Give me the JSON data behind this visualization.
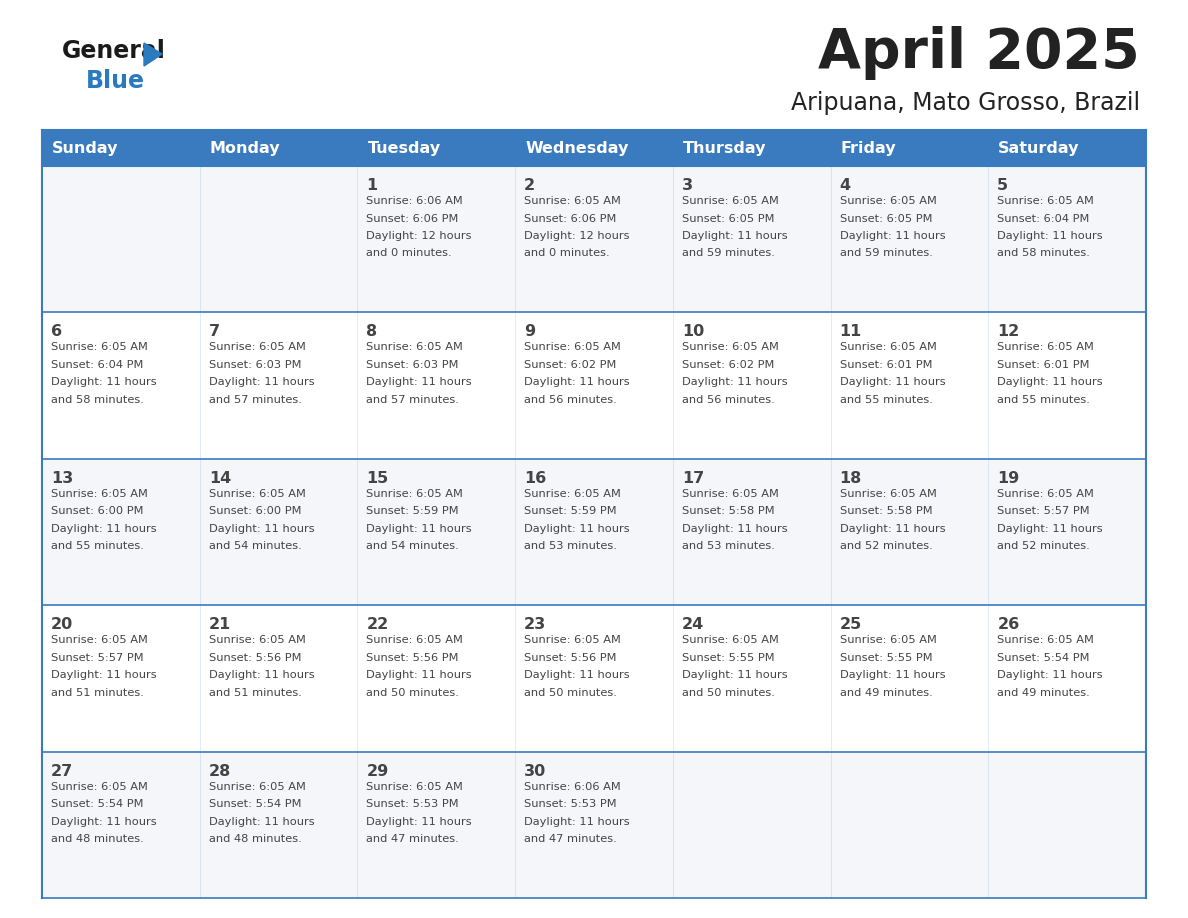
{
  "title": "April 2025",
  "subtitle": "Aripuana, Mato Grosso, Brazil",
  "days_of_week": [
    "Sunday",
    "Monday",
    "Tuesday",
    "Wednesday",
    "Thursday",
    "Friday",
    "Saturday"
  ],
  "header_bg": "#3a7abf",
  "header_text": "#ffffff",
  "border_color": "#3a7abf",
  "text_color": "#444444",
  "title_color": "#222222",
  "logo_general_color": "#1a1a1a",
  "logo_blue_color": "#2a7abf",
  "days": [
    {
      "date": 1,
      "col": 2,
      "row": 0,
      "sunrise": "6:06 AM",
      "sunset": "6:06 PM",
      "daylight": "12 hours and 0 minutes"
    },
    {
      "date": 2,
      "col": 3,
      "row": 0,
      "sunrise": "6:05 AM",
      "sunset": "6:06 PM",
      "daylight": "12 hours and 0 minutes"
    },
    {
      "date": 3,
      "col": 4,
      "row": 0,
      "sunrise": "6:05 AM",
      "sunset": "6:05 PM",
      "daylight": "11 hours and 59 minutes"
    },
    {
      "date": 4,
      "col": 5,
      "row": 0,
      "sunrise": "6:05 AM",
      "sunset": "6:05 PM",
      "daylight": "11 hours and 59 minutes"
    },
    {
      "date": 5,
      "col": 6,
      "row": 0,
      "sunrise": "6:05 AM",
      "sunset": "6:04 PM",
      "daylight": "11 hours and 58 minutes"
    },
    {
      "date": 6,
      "col": 0,
      "row": 1,
      "sunrise": "6:05 AM",
      "sunset": "6:04 PM",
      "daylight": "11 hours and 58 minutes"
    },
    {
      "date": 7,
      "col": 1,
      "row": 1,
      "sunrise": "6:05 AM",
      "sunset": "6:03 PM",
      "daylight": "11 hours and 57 minutes"
    },
    {
      "date": 8,
      "col": 2,
      "row": 1,
      "sunrise": "6:05 AM",
      "sunset": "6:03 PM",
      "daylight": "11 hours and 57 minutes"
    },
    {
      "date": 9,
      "col": 3,
      "row": 1,
      "sunrise": "6:05 AM",
      "sunset": "6:02 PM",
      "daylight": "11 hours and 56 minutes"
    },
    {
      "date": 10,
      "col": 4,
      "row": 1,
      "sunrise": "6:05 AM",
      "sunset": "6:02 PM",
      "daylight": "11 hours and 56 minutes"
    },
    {
      "date": 11,
      "col": 5,
      "row": 1,
      "sunrise": "6:05 AM",
      "sunset": "6:01 PM",
      "daylight": "11 hours and 55 minutes"
    },
    {
      "date": 12,
      "col": 6,
      "row": 1,
      "sunrise": "6:05 AM",
      "sunset": "6:01 PM",
      "daylight": "11 hours and 55 minutes"
    },
    {
      "date": 13,
      "col": 0,
      "row": 2,
      "sunrise": "6:05 AM",
      "sunset": "6:00 PM",
      "daylight": "11 hours and 55 minutes"
    },
    {
      "date": 14,
      "col": 1,
      "row": 2,
      "sunrise": "6:05 AM",
      "sunset": "6:00 PM",
      "daylight": "11 hours and 54 minutes"
    },
    {
      "date": 15,
      "col": 2,
      "row": 2,
      "sunrise": "6:05 AM",
      "sunset": "5:59 PM",
      "daylight": "11 hours and 54 minutes"
    },
    {
      "date": 16,
      "col": 3,
      "row": 2,
      "sunrise": "6:05 AM",
      "sunset": "5:59 PM",
      "daylight": "11 hours and 53 minutes"
    },
    {
      "date": 17,
      "col": 4,
      "row": 2,
      "sunrise": "6:05 AM",
      "sunset": "5:58 PM",
      "daylight": "11 hours and 53 minutes"
    },
    {
      "date": 18,
      "col": 5,
      "row": 2,
      "sunrise": "6:05 AM",
      "sunset": "5:58 PM",
      "daylight": "11 hours and 52 minutes"
    },
    {
      "date": 19,
      "col": 6,
      "row": 2,
      "sunrise": "6:05 AM",
      "sunset": "5:57 PM",
      "daylight": "11 hours and 52 minutes"
    },
    {
      "date": 20,
      "col": 0,
      "row": 3,
      "sunrise": "6:05 AM",
      "sunset": "5:57 PM",
      "daylight": "11 hours and 51 minutes"
    },
    {
      "date": 21,
      "col": 1,
      "row": 3,
      "sunrise": "6:05 AM",
      "sunset": "5:56 PM",
      "daylight": "11 hours and 51 minutes"
    },
    {
      "date": 22,
      "col": 2,
      "row": 3,
      "sunrise": "6:05 AM",
      "sunset": "5:56 PM",
      "daylight": "11 hours and 50 minutes"
    },
    {
      "date": 23,
      "col": 3,
      "row": 3,
      "sunrise": "6:05 AM",
      "sunset": "5:56 PM",
      "daylight": "11 hours and 50 minutes"
    },
    {
      "date": 24,
      "col": 4,
      "row": 3,
      "sunrise": "6:05 AM",
      "sunset": "5:55 PM",
      "daylight": "11 hours and 50 minutes"
    },
    {
      "date": 25,
      "col": 5,
      "row": 3,
      "sunrise": "6:05 AM",
      "sunset": "5:55 PM",
      "daylight": "11 hours and 49 minutes"
    },
    {
      "date": 26,
      "col": 6,
      "row": 3,
      "sunrise": "6:05 AM",
      "sunset": "5:54 PM",
      "daylight": "11 hours and 49 minutes"
    },
    {
      "date": 27,
      "col": 0,
      "row": 4,
      "sunrise": "6:05 AM",
      "sunset": "5:54 PM",
      "daylight": "11 hours and 48 minutes"
    },
    {
      "date": 28,
      "col": 1,
      "row": 4,
      "sunrise": "6:05 AM",
      "sunset": "5:54 PM",
      "daylight": "11 hours and 48 minutes"
    },
    {
      "date": 29,
      "col": 2,
      "row": 4,
      "sunrise": "6:05 AM",
      "sunset": "5:53 PM",
      "daylight": "11 hours and 47 minutes"
    },
    {
      "date": 30,
      "col": 3,
      "row": 4,
      "sunrise": "6:06 AM",
      "sunset": "5:53 PM",
      "daylight": "11 hours and 47 minutes"
    }
  ]
}
